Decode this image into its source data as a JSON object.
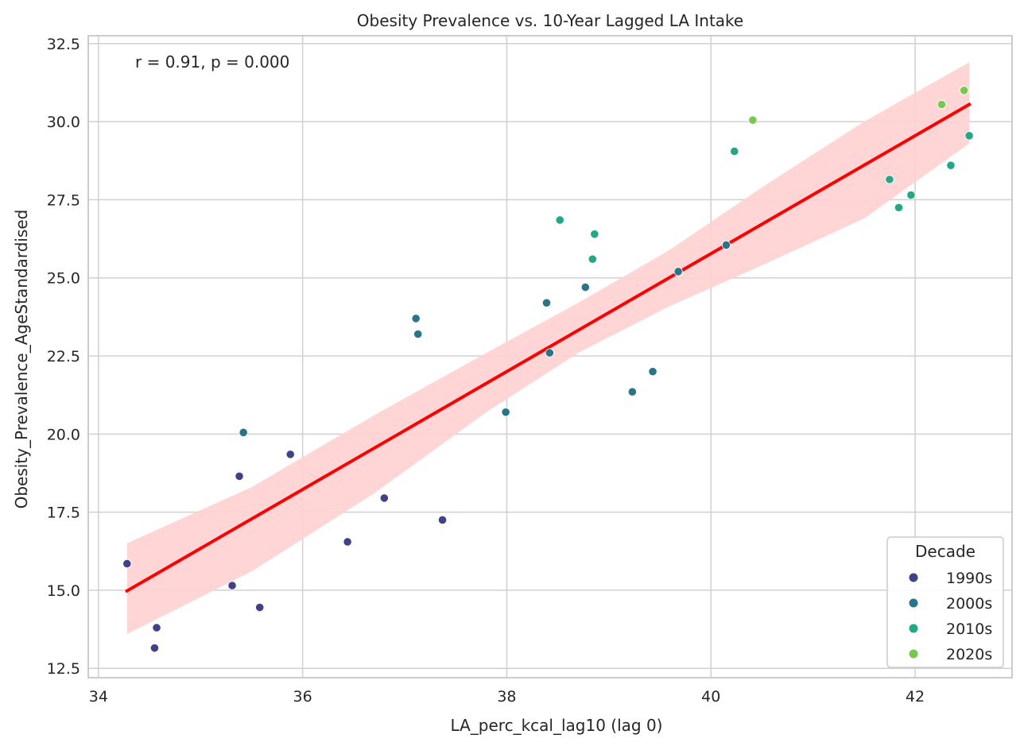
{
  "chart_data": {
    "type": "scatter",
    "title": "Obesity Prevalence vs. 10-Year Lagged LA Intake",
    "xlabel": "LA_perc_kcal_lag10 (lag 0)",
    "ylabel": "Obesity_Prevalence_AgeStandardised",
    "xlim": [
      33.9,
      42.95
    ],
    "ylim": [
      12.2,
      32.75
    ],
    "xticks": [
      34,
      36,
      38,
      40,
      42
    ],
    "yticks": [
      12.5,
      15.0,
      17.5,
      20.0,
      22.5,
      25.0,
      27.5,
      30.0,
      32.5
    ],
    "grid": true,
    "annotation": "r = 0.91, p = 0.000",
    "legend": {
      "title": "Decade",
      "position": "bottom-right",
      "entries": [
        "1990s",
        "2000s",
        "2010s",
        "2020s"
      ]
    },
    "series": [
      {
        "name": "1990s",
        "color": "#40418a",
        "points": [
          [
            34.28,
            15.85
          ],
          [
            34.55,
            13.15
          ],
          [
            34.57,
            13.8
          ],
          [
            35.31,
            15.15
          ],
          [
            35.38,
            18.65
          ],
          [
            35.58,
            14.45
          ],
          [
            35.88,
            19.35
          ],
          [
            36.44,
            16.55
          ],
          [
            36.8,
            17.95
          ],
          [
            37.37,
            17.25
          ]
        ]
      },
      {
        "name": "2000s",
        "color": "#277589",
        "points": [
          [
            35.42,
            20.05
          ],
          [
            37.11,
            23.7
          ],
          [
            37.13,
            23.2
          ],
          [
            37.99,
            20.7
          ],
          [
            38.39,
            24.2
          ],
          [
            38.42,
            22.6
          ],
          [
            38.77,
            24.7
          ],
          [
            39.23,
            21.35
          ],
          [
            39.43,
            22.0
          ],
          [
            39.68,
            25.2
          ],
          [
            40.15,
            26.05
          ]
        ]
      },
      {
        "name": "2010s",
        "color": "#21a884",
        "points": [
          [
            38.52,
            26.85
          ],
          [
            38.84,
            25.6
          ],
          [
            38.86,
            26.4
          ],
          [
            40.23,
            29.05
          ],
          [
            41.75,
            28.15
          ],
          [
            41.84,
            27.25
          ],
          [
            41.96,
            27.65
          ],
          [
            42.35,
            28.6
          ],
          [
            42.53,
            29.55
          ]
        ]
      },
      {
        "name": "2020s",
        "color": "#76c84e",
        "points": [
          [
            40.41,
            30.05
          ],
          [
            42.26,
            30.55
          ],
          [
            42.48,
            31.0
          ]
        ]
      }
    ],
    "regression": {
      "color": "#ff0000",
      "ci_color": "#ffd0d0",
      "line": [
        [
          34.28,
          14.98
        ],
        [
          42.53,
          30.55
        ]
      ],
      "ci_band": [
        {
          "x": 34.28,
          "lo": 13.6,
          "hi": 16.5
        },
        {
          "x": 35.5,
          "lo": 15.6,
          "hi": 18.3
        },
        {
          "x": 36.7,
          "lo": 18.1,
          "hi": 20.6
        },
        {
          "x": 37.8,
          "lo": 20.7,
          "hi": 22.6
        },
        {
          "x": 38.7,
          "lo": 22.6,
          "hi": 24.2
        },
        {
          "x": 39.6,
          "lo": 24.1,
          "hi": 25.9
        },
        {
          "x": 40.5,
          "lo": 25.4,
          "hi": 27.9
        },
        {
          "x": 41.5,
          "lo": 26.9,
          "hi": 30.0
        },
        {
          "x": 42.53,
          "lo": 29.3,
          "hi": 31.9
        }
      ]
    }
  }
}
